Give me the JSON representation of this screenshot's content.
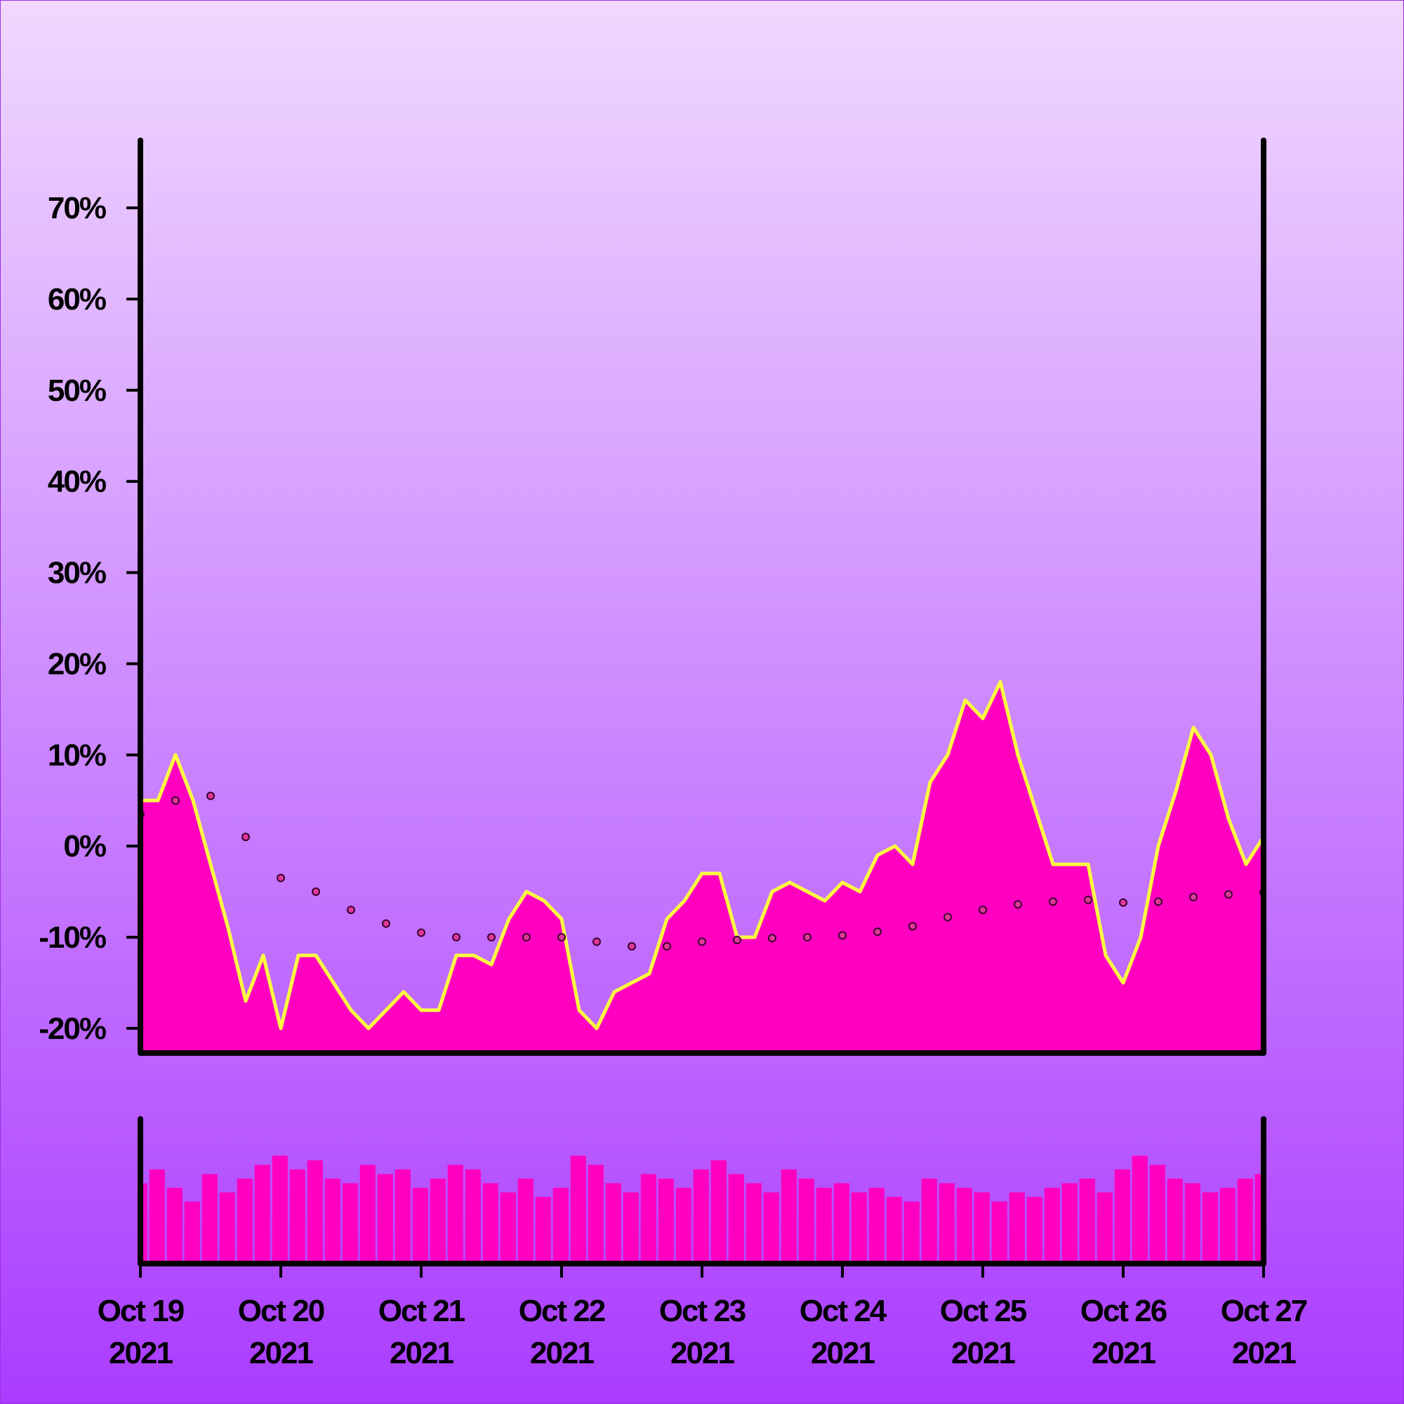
{
  "chart_data": [
    {
      "type": "area",
      "xlim": [
        0,
        8
      ],
      "ylim": [
        -22.7,
        77.4
      ],
      "yticks": [
        {
          "value": -20,
          "label": "-20%"
        },
        {
          "value": -10,
          "label": "-10%"
        },
        {
          "value": 0,
          "label": "0%"
        },
        {
          "value": 10,
          "label": "10%"
        },
        {
          "value": 20,
          "label": "20%"
        },
        {
          "value": 30,
          "label": "30%"
        },
        {
          "value": 40,
          "label": "40%"
        },
        {
          "value": 50,
          "label": "50%"
        },
        {
          "value": 60,
          "label": "60%"
        },
        {
          "value": 70,
          "label": "70%"
        }
      ],
      "color": "#ffff40",
      "fill": "#ff00c0",
      "x": [
        0,
        0.125,
        0.25,
        0.375,
        0.5,
        0.625,
        0.75,
        0.875,
        1,
        1.125,
        1.25,
        1.375,
        1.5,
        1.625,
        1.75,
        1.875,
        2,
        2.125,
        2.25,
        2.375,
        2.5,
        2.625,
        2.75,
        2.875,
        3,
        3.125,
        3.25,
        3.375,
        3.5,
        3.625,
        3.75,
        3.875,
        4,
        4.125,
        4.25,
        4.375,
        4.5,
        4.625,
        4.75,
        4.875,
        5,
        5.125,
        5.25,
        5.375,
        5.5,
        5.625,
        5.75,
        5.875,
        6,
        6.125,
        6.25,
        6.375,
        6.5,
        6.625,
        6.75,
        6.875,
        7,
        7.125,
        7.25,
        7.375,
        7.5,
        7.625,
        7.75,
        7.875,
        8
      ],
      "values": [
        5,
        5,
        10,
        5,
        -2,
        -9,
        -17,
        -12,
        -20,
        -12,
        -12,
        -15,
        -18,
        -20,
        -18,
        -16,
        -18,
        -18,
        -12,
        -12,
        -13,
        -8,
        -5,
        -6,
        -8,
        -18,
        -20,
        -16,
        -15,
        -14,
        -8,
        -6,
        -3,
        -3,
        -10,
        -10,
        -5,
        -4,
        -5,
        -6,
        -4,
        -5,
        -1,
        0,
        -2,
        7,
        10,
        16,
        14,
        18,
        10,
        4,
        -2,
        -2,
        -2,
        -12,
        -15,
        -10,
        0,
        6,
        13,
        10,
        3,
        -2,
        1
      ],
      "moving_average": {
        "color": "#e0389a",
        "x": [
          0,
          0.25,
          0.5,
          0.75,
          1,
          1.25,
          1.5,
          1.75,
          2,
          2.25,
          2.5,
          2.75,
          3,
          3.25,
          3.5,
          3.75,
          4,
          4.25,
          4.5,
          4.75,
          5,
          5.25,
          5.5,
          5.75,
          6,
          6.25,
          6.5,
          6.75,
          7,
          7.25,
          7.5,
          7.75,
          8
        ],
        "values": [
          3.5,
          5,
          5.5,
          1,
          -3.5,
          -5,
          -7,
          -8.5,
          -9.5,
          -10,
          -10,
          -10,
          -10,
          -10.5,
          -11,
          -11,
          -10.5,
          -10.3,
          -10.1,
          -10,
          -9.8,
          -9.4,
          -8.8,
          -7.8,
          -7,
          -6.4,
          -6.1,
          -5.9,
          -6.2,
          -6.1,
          -5.6,
          -5.3,
          -5.1
        ]
      }
    },
    {
      "type": "bar",
      "xlim": [
        0,
        8
      ],
      "ylim": [
        0,
        150
      ],
      "color": "#ff00c0",
      "xticks": [
        {
          "value": 0,
          "label": [
            "Oct 19",
            "2021"
          ]
        },
        {
          "value": 1,
          "label": [
            "Oct 20",
            "2021"
          ]
        },
        {
          "value": 2,
          "label": [
            "Oct 21",
            "2021"
          ]
        },
        {
          "value": 3,
          "label": [
            "Oct 22",
            "2021"
          ]
        },
        {
          "value": 4,
          "label": [
            "Oct 23",
            "2021"
          ]
        },
        {
          "value": 5,
          "label": [
            "Oct 24",
            "2021"
          ]
        },
        {
          "value": 6,
          "label": [
            "Oct 25",
            "2021"
          ]
        },
        {
          "value": 7,
          "label": [
            "Oct 26",
            "2021"
          ]
        },
        {
          "value": 8,
          "label": [
            "Oct 27",
            "2021"
          ]
        }
      ],
      "x": [
        0,
        0.125,
        0.25,
        0.375,
        0.5,
        0.625,
        0.75,
        0.875,
        1,
        1.125,
        1.25,
        1.375,
        1.5,
        1.625,
        1.75,
        1.875,
        2,
        2.125,
        2.25,
        2.375,
        2.5,
        2.625,
        2.75,
        2.875,
        3,
        3.125,
        3.25,
        3.375,
        3.5,
        3.625,
        3.75,
        3.875,
        4,
        4.125,
        4.25,
        4.375,
        4.5,
        4.625,
        4.75,
        4.875,
        5,
        5.125,
        5.25,
        5.375,
        5.5,
        5.625,
        5.75,
        5.875,
        6,
        6.125,
        6.25,
        6.375,
        6.5,
        6.625,
        6.75,
        6.875,
        7,
        7.125,
        7.25,
        7.375,
        7.5,
        7.625,
        7.75,
        7.875,
        8
      ],
      "values": [
        80,
        95,
        75,
        60,
        90,
        70,
        85,
        100,
        110,
        95,
        105,
        85,
        80,
        100,
        90,
        95,
        75,
        85,
        100,
        95,
        80,
        70,
        85,
        65,
        75,
        110,
        100,
        80,
        70,
        90,
        85,
        75,
        95,
        105,
        90,
        80,
        70,
        95,
        85,
        75,
        80,
        70,
        75,
        65,
        60,
        85,
        80,
        75,
        70,
        60,
        70,
        65,
        75,
        80,
        85,
        70,
        95,
        110,
        100,
        85,
        80,
        70,
        75,
        85,
        90
      ]
    }
  ]
}
